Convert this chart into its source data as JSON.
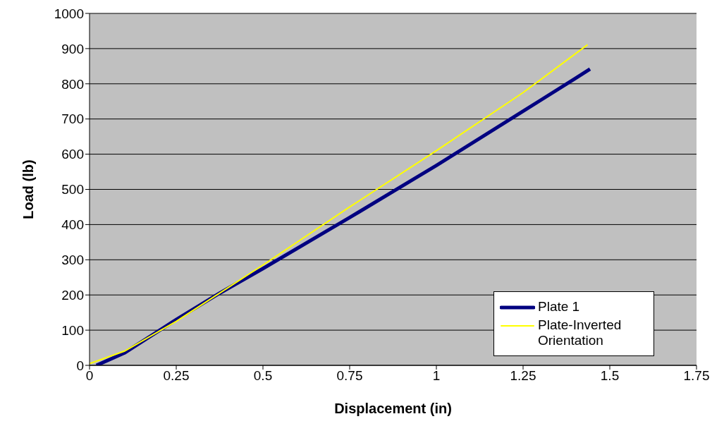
{
  "chart_data": {
    "type": "line",
    "xlabel": "Displacement (in)",
    "ylabel": "Load (lb)",
    "xlim": [
      0,
      1.75
    ],
    "xticks": [
      0,
      0.25,
      0.5,
      0.75,
      1,
      1.25,
      1.5,
      1.75
    ],
    "ylim": [
      0,
      1000
    ],
    "yticks": [
      0,
      100,
      200,
      300,
      400,
      500,
      600,
      700,
      800,
      900,
      1000
    ],
    "grid": "y",
    "legend": "bottom right",
    "marker": "none",
    "line_style": "solid",
    "series": [
      {
        "name": "Plate 1",
        "color": "#000080",
        "x": [
          0.02,
          0.1,
          0.25,
          0.375,
          0.5,
          0.75,
          1.0,
          1.25,
          1.4,
          1.443
        ],
        "values": [
          0,
          35,
          130,
          205,
          275,
          420,
          568,
          722,
          815,
          842
        ]
      },
      {
        "name": "Plate-Inverted Orientation",
        "color": "#ffff00",
        "x": [
          0,
          0.1,
          0.25,
          0.375,
          0.5,
          0.75,
          1.0,
          1.25,
          1.436
        ],
        "values": [
          5,
          40,
          125,
          205,
          285,
          450,
          610,
          775,
          911
        ]
      }
    ]
  }
}
